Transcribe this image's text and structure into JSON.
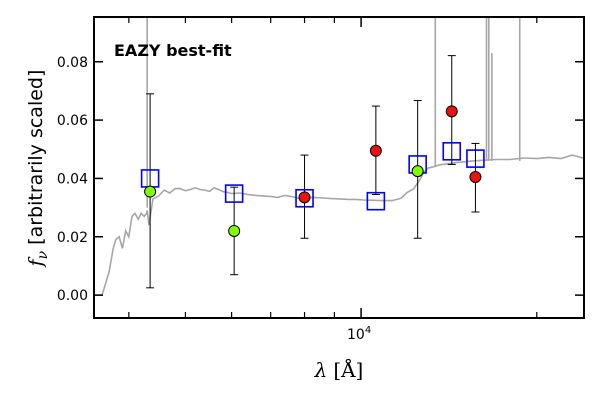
{
  "chart_data": {
    "type": "scatter",
    "annotation": "EAZY best-fit",
    "colors": {
      "annotation": "#ff0000",
      "template": "#a6a6a6",
      "model_box": "#0000ff",
      "green": "#7fff00",
      "red": "#e8140f",
      "errorbar": "#000000"
    },
    "xlabel_sym": "λ",
    "xlabel_unit": "[Å]",
    "ylabel_sym": "f",
    "ylabel_sub": "ν",
    "ylabel_text": "[arbitrarily scaled]",
    "x_scale": "log",
    "xlim": [
      3500,
      24000
    ],
    "ylim": [
      -0.0075,
      0.095
    ],
    "yticks": [
      0.0,
      0.02,
      0.04,
      0.06,
      0.08
    ],
    "ytick_labels": [
      "0.00",
      "0.02",
      "0.04",
      "0.06",
      "0.08"
    ],
    "x_major_ticks": [
      10000
    ],
    "x_major_labels": [
      "10",
      "4"
    ],
    "x_minor_ticks": [
      4000,
      5000,
      6000,
      7000,
      8000,
      9000,
      20000
    ],
    "model_photometry": [
      {
        "x": 4350,
        "y": 0.04
      },
      {
        "x": 6060,
        "y": 0.0348
      },
      {
        "x": 8000,
        "y": 0.0332
      },
      {
        "x": 10600,
        "y": 0.0322
      },
      {
        "x": 12500,
        "y": 0.0448
      },
      {
        "x": 14300,
        "y": 0.0493
      },
      {
        "x": 15700,
        "y": 0.0468
      }
    ],
    "observed_green": [
      {
        "x": 4350,
        "y": 0.0355,
        "ylow": 0.0025,
        "yhigh": 0.069
      },
      {
        "x": 6060,
        "y": 0.022,
        "ylow": 0.007,
        "yhigh": 0.037
      },
      {
        "x": 12500,
        "y": 0.0425,
        "ylow": 0.0195,
        "yhigh": 0.0667
      }
    ],
    "observed_red": [
      {
        "x": 8000,
        "y": 0.0335,
        "ylow": 0.0195,
        "yhigh": 0.048
      },
      {
        "x": 10600,
        "y": 0.0495,
        "ylow": 0.0345,
        "yhigh": 0.0648
      },
      {
        "x": 14300,
        "y": 0.063,
        "ylow": 0.0448,
        "yhigh": 0.0821
      },
      {
        "x": 15700,
        "y": 0.0405,
        "ylow": 0.0285,
        "yhigh": 0.052
      }
    ],
    "template_curve": [
      [
        3500,
        0.0
      ],
      [
        3600,
        0.0
      ],
      [
        3700,
        0.008
      ],
      [
        3760,
        0.016
      ],
      [
        3800,
        0.019
      ],
      [
        3850,
        0.02
      ],
      [
        3900,
        0.016
      ],
      [
        3950,
        0.022
      ],
      [
        4000,
        0.02
      ],
      [
        4050,
        0.027
      ],
      [
        4100,
        0.028
      ],
      [
        4150,
        0.026
      ],
      [
        4200,
        0.028
      ],
      [
        4250,
        0.027
      ],
      [
        4290,
        0.028
      ],
      [
        4300,
        0.029
      ],
      [
        4330,
        0.024
      ],
      [
        4360,
        0.028
      ],
      [
        4400,
        0.033
      ],
      [
        4500,
        0.034
      ],
      [
        4600,
        0.036
      ],
      [
        4700,
        0.035
      ],
      [
        4800,
        0.0365
      ],
      [
        4900,
        0.0365
      ],
      [
        5000,
        0.0358
      ],
      [
        5100,
        0.0362
      ],
      [
        5200,
        0.0368
      ],
      [
        5300,
        0.0362
      ],
      [
        5400,
        0.036
      ],
      [
        5500,
        0.0356
      ],
      [
        5600,
        0.0368
      ],
      [
        5700,
        0.0362
      ],
      [
        5800,
        0.0355
      ],
      [
        5900,
        0.0352
      ],
      [
        6000,
        0.0348
      ],
      [
        6200,
        0.035
      ],
      [
        6400,
        0.0345
      ],
      [
        6600,
        0.0342
      ],
      [
        6800,
        0.034
      ],
      [
        7000,
        0.0338
      ],
      [
        7200,
        0.0335
      ],
      [
        7400,
        0.0342
      ],
      [
        7600,
        0.0338
      ],
      [
        7800,
        0.0332
      ],
      [
        8000,
        0.0334
      ],
      [
        8300,
        0.0335
      ],
      [
        8600,
        0.0333
      ],
      [
        8900,
        0.0331
      ],
      [
        9200,
        0.033
      ],
      [
        9500,
        0.0328
      ],
      [
        9800,
        0.0328
      ],
      [
        10100,
        0.0326
      ],
      [
        10500,
        0.0325
      ],
      [
        10900,
        0.0324
      ],
      [
        11300,
        0.0324
      ],
      [
        11700,
        0.0332
      ],
      [
        12000,
        0.0352
      ],
      [
        12300,
        0.0364
      ],
      [
        12600,
        0.0395
      ],
      [
        12800,
        0.042
      ],
      [
        13000,
        0.0435
      ],
      [
        13300,
        0.044
      ],
      [
        13600,
        0.0446
      ],
      [
        14000,
        0.045
      ],
      [
        14500,
        0.0454
      ],
      [
        15000,
        0.0457
      ],
      [
        15500,
        0.046
      ],
      [
        16000,
        0.0462
      ],
      [
        17000,
        0.0465
      ],
      [
        18000,
        0.0465
      ],
      [
        19000,
        0.047
      ],
      [
        20000,
        0.0468
      ],
      [
        21000,
        0.0472
      ],
      [
        22000,
        0.0468
      ],
      [
        23000,
        0.048
      ],
      [
        24000,
        0.047
      ]
    ],
    "template_spikes": [
      {
        "x": 4300,
        "ytop": 0.095,
        "ybase": 0.03
      },
      {
        "x": 13400,
        "ytop": 0.095,
        "ybase": 0.044
      },
      {
        "x": 16400,
        "ytop": 0.095,
        "ybase": 0.046
      },
      {
        "x": 16550,
        "ytop": 0.095,
        "ybase": 0.046
      },
      {
        "x": 16750,
        "ytop": 0.083,
        "ybase": 0.046
      },
      {
        "x": 18700,
        "ytop": 0.095,
        "ybase": 0.046
      }
    ]
  }
}
